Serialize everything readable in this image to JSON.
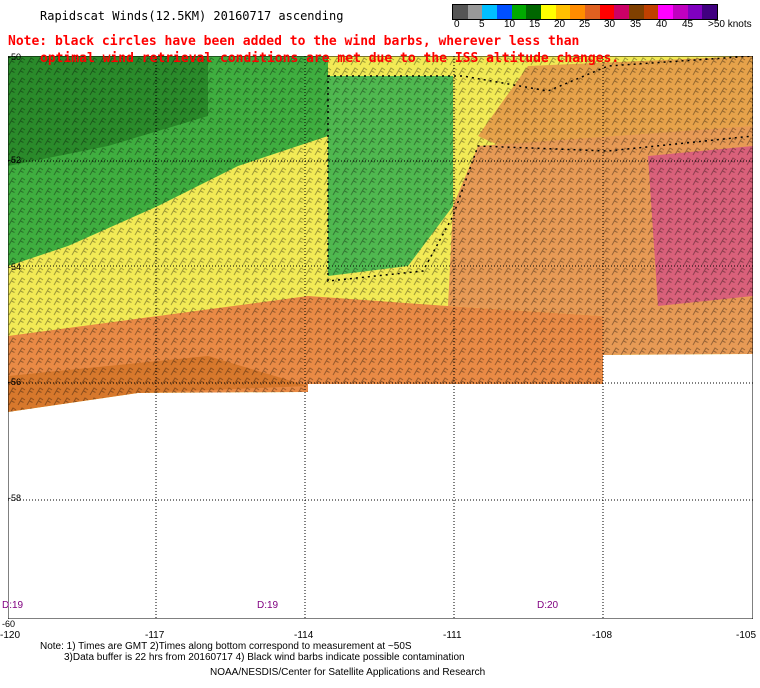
{
  "title": "Rapidscat Winds(12.5KM) 20160717 ascending",
  "note_line1": "Note: black circles have been added to the wind barbs, wherever less than",
  "note_line2": "optimal wind retrieval conditions are met due to the ISS altitude changes.",
  "legend": {
    "labels": [
      "0",
      "5",
      "10",
      "15",
      "20",
      "25",
      "30",
      "35",
      "40",
      "45",
      ">50 knots"
    ],
    "colors": [
      "#555555",
      "#999999",
      "#00bfff",
      "#0050ff",
      "#00aa00",
      "#006600",
      "#ffff00",
      "#ffc000",
      "#ff8c00",
      "#e06020",
      "#ff0000",
      "#cc0066",
      "#804000",
      "#c04000",
      "#ff00ff",
      "#c000c0",
      "#8000c0",
      "#400080"
    ]
  },
  "axes": {
    "lat_labels": [
      "-50",
      "-52",
      "-54",
      "-56",
      "-58",
      "-60"
    ],
    "lon_labels": [
      "-120",
      "-117",
      "-114",
      "-111",
      "-108",
      "-105"
    ]
  },
  "time_labels": [
    "D:19",
    "D:19",
    "D:20"
  ],
  "footnote_line1": "Note: 1) Times are GMT 2)Times along bottom correspond to measurement at ~50S",
  "footnote_line2": "3)Data buffer is 22 hrs from 20160717 4) Black wind barbs indicate possible contamination",
  "credit": "NOAA/NESDIS/Center for Satellite Applications and Research"
}
